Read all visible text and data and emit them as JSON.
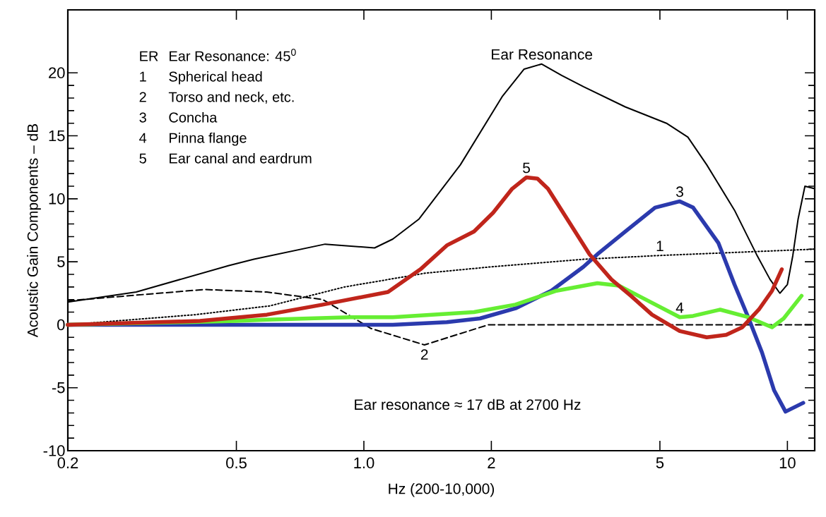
{
  "chart_data": {
    "type": "line",
    "xlabel": "Hz (200-10,000)",
    "ylabel": "Acoustic Gain  Components – dB",
    "log": "x",
    "xlim": [
      0.2,
      11.6
    ],
    "ylim": [
      -10,
      25
    ],
    "xticks": [
      0.2,
      0.5,
      {
        "value": 1,
        "label": "1.0"
      },
      2,
      5,
      10
    ],
    "yticks": [
      -10,
      -5,
      0,
      5,
      10,
      15,
      20
    ],
    "series": [
      {
        "color": "#000000",
        "line_style": "solid",
        "x": [
          0.2,
          0.29,
          0.48,
          0.55,
          0.81,
          1.06,
          1.17,
          1.35,
          1.69,
          2.12,
          2.39,
          2.63,
          2.93,
          3.3,
          4.14,
          5.18,
          5.82,
          6.45,
          7.5,
          8.45,
          9.1,
          9.6,
          10.0,
          10.3,
          10.6,
          11.0,
          11.6
        ],
        "values": [
          1.8,
          2.6,
          4.7,
          5.2,
          6.4,
          6.1,
          6.8,
          8.4,
          12.7,
          18.1,
          20.3,
          20.7,
          19.8,
          18.9,
          17.3,
          16.0,
          14.9,
          12.7,
          9.1,
          5.6,
          3.6,
          2.5,
          3.2,
          5.5,
          8.4,
          11.0,
          10.8
        ]
      },
      {
        "color": "#000000",
        "line_style": "dotted",
        "x": [
          0.2,
          0.3,
          0.4,
          0.6,
          0.9,
          1.4,
          2,
          3.3,
          5,
          11.6
        ],
        "values": [
          0,
          null,
          0.8,
          1.5,
          3.0,
          4.1,
          4.6,
          5.2,
          5.5,
          6.0
        ]
      },
      {
        "color": "#000000",
        "line_style": "dashed",
        "x": [
          0.2,
          0.42,
          0.59,
          0.8,
          1.04,
          1.39,
          1.69,
          1.97,
          11.6
        ],
        "values": [
          1.9,
          2.8,
          2.6,
          2.0,
          -0.3,
          -1.6,
          -0.7,
          0,
          0
        ]
      },
      {
        "color": "#2b3aad",
        "line_style": "solid",
        "x": [
          0.2,
          1.17,
          1.57,
          1.88,
          2.28,
          2.77,
          3.3,
          3.56,
          4.14,
          4.87,
          5.57,
          5.99,
          6.87,
          7.5,
          8.08,
          8.71,
          9.3,
          9.9,
          10.9
        ],
        "values": [
          0,
          0,
          0.2,
          0.5,
          1.3,
          2.7,
          4.6,
          5.6,
          7.4,
          9.3,
          9.8,
          9.3,
          6.5,
          3.2,
          0.6,
          -2.2,
          -5.2,
          -6.9,
          -6.2
        ]
      },
      {
        "color": "#66ee33",
        "line_style": "solid",
        "x": [
          0.2,
          0.5,
          0.59,
          0.93,
          1.17,
          1.82,
          2.28,
          2.85,
          3.56,
          4.0,
          4.45,
          5.57,
          5.99,
          6.94,
          8.08,
          9.2,
          9.8,
          10.8
        ],
        "values": [
          0,
          0.3,
          0.4,
          0.6,
          0.6,
          1.0,
          1.6,
          2.7,
          3.3,
          3.1,
          2.3,
          0.6,
          0.7,
          1.2,
          0.6,
          -0.2,
          0.5,
          2.3
        ]
      },
      {
        "color": "#c0251b",
        "line_style": "solid",
        "x": [
          0.2,
          0.41,
          0.59,
          0.8,
          1.14,
          1.36,
          1.57,
          1.82,
          2.02,
          2.24,
          2.42,
          2.57,
          2.72,
          3.02,
          3.41,
          3.84,
          4.27,
          4.79,
          5.57,
          6.45,
          7.17,
          7.83,
          8.56,
          9.2,
          9.7
        ],
        "values": [
          0,
          0.3,
          0.8,
          1.6,
          2.6,
          4.4,
          6.3,
          7.4,
          8.9,
          10.8,
          11.7,
          11.6,
          10.8,
          8.4,
          5.6,
          3.6,
          2.3,
          0.8,
          -0.5,
          -1.0,
          -0.8,
          -0.2,
          1.2,
          2.7,
          4.4
        ]
      }
    ],
    "annotations": [
      "ER",
      "Ear Resonance: 45$^{0}$",
      "1",
      "Spherical head",
      "2",
      "Torso and neck, etc.",
      "3",
      "Concha",
      "4",
      "Pinna flange",
      "5",
      "Ear canal and eardrum",
      {
        "text": "Ear Resonance",
        "x": 2.63,
        "y": 20.7
      },
      {
        "text": "5",
        "x": 2.42,
        "y": 11.7
      },
      {
        "text": "3",
        "x": 5.57,
        "y": 9.8
      },
      {
        "text": "1",
        "x": 5,
        "y": 5.5
      },
      {
        "text": "4",
        "x": 5.57,
        "y": 0.6
      },
      {
        "text": "2",
        "x": 1.39,
        "y": -1.6
      },
      "Ear resonance ≈ 17 dB at 2700 Hz"
    ]
  }
}
